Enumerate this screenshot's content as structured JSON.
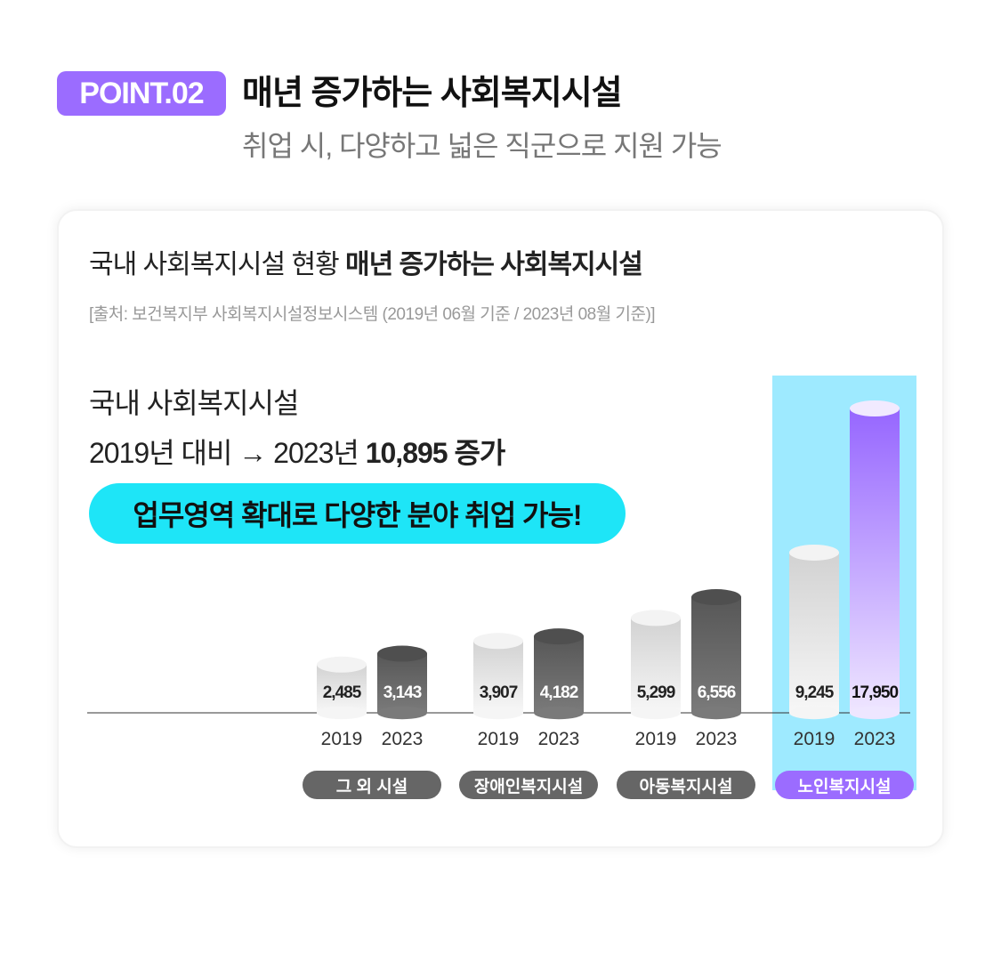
{
  "header": {
    "badge": "POINT.02",
    "title": "매년 증가하는 사회복지시설",
    "subtitle": "취업 시, 다양하고 넓은 직군으로 지원 가능"
  },
  "card": {
    "title_regular": "국내 사회복지시설 현황 ",
    "title_bold": "매년 증가하는 사회복지시설",
    "source": "[출처: 보건복지부 사회복지시설정보시스템 (2019년 06월 기준 / 2023년 08월 기준)]",
    "summary_line1": "국내 사회복지시설",
    "summary_line2_regular": "2019년 대비 → 2023년 ",
    "summary_line2_bold": "10,895 증가",
    "pill": "업무영역 확대로 다양한 분야 취업 가능!"
  },
  "colors": {
    "accent_purple": "#9b6cff",
    "accent_cyan": "#1ee5f7",
    "highlight_bg": "#9eeaff",
    "bar_light": "#e2e2e2",
    "bar_dark": "#5f5f5f",
    "pill_grey": "#666666"
  },
  "chart_data": {
    "type": "bar",
    "categories": [
      "그 외 시설",
      "장애인복지시설",
      "아동복지시설",
      "노인복지시설"
    ],
    "series": [
      {
        "name": "2019",
        "values": [
          2485,
          3907,
          5299,
          9245
        ]
      },
      {
        "name": "2023",
        "values": [
          3143,
          4182,
          6556,
          17950
        ]
      }
    ],
    "value_labels": [
      [
        "2,485",
        "3,143"
      ],
      [
        "3,907",
        "4,182"
      ],
      [
        "5,299",
        "6,556"
      ],
      [
        "9,245",
        "17,950"
      ]
    ],
    "highlighted_category": "노인복지시설",
    "grid": false
  }
}
